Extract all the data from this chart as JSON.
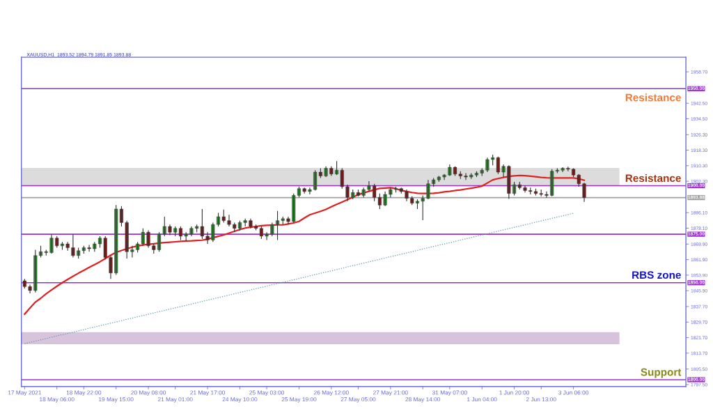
{
  "chart_data": {
    "type": "candlestick",
    "title": "XAUUSD,H1  1893.52 1894.79 1891.85 1893.88",
    "categories": [
      "17 May 2021",
      null,
      null,
      null,
      null,
      null,
      "18 May 06:00",
      null,
      null,
      null,
      null,
      "18 May 22:00",
      null,
      null,
      null,
      null,
      null,
      "19 May 15:00",
      null,
      null,
      null,
      null,
      null,
      "20 May 08:00",
      null,
      null,
      null,
      null,
      "21 May 01:00",
      null,
      null,
      null,
      null,
      null,
      "21 May 17:00",
      null,
      null,
      null,
      null,
      null,
      "24 May 10:00",
      null,
      null,
      null,
      null,
      "25 May 03:00",
      null,
      null,
      null,
      null,
      null,
      "25 May 19:00",
      null,
      null,
      null,
      null,
      null,
      "26 May 12:00",
      null,
      null,
      null,
      null,
      "27 May 05:00",
      null,
      null,
      null,
      null,
      null,
      "27 May 21:00",
      null,
      null,
      null,
      null,
      null,
      "28 May 14:00",
      null,
      null,
      null,
      null,
      "31 May 07:00",
      null,
      null,
      null,
      null,
      null,
      "1 Jun 04:00",
      null,
      null,
      null,
      null,
      null,
      "1 Jun 20:00",
      null,
      null,
      null,
      null,
      "2 Jun 13:00",
      null,
      null,
      null,
      null,
      null,
      "3 Jun 06:00",
      null,
      null
    ],
    "ohlc": [
      [
        1851,
        1852,
        1847,
        1848
      ],
      [
        1848,
        1849,
        1844.5,
        1846
      ],
      [
        1846,
        1867,
        1845,
        1864
      ],
      [
        1864,
        1869,
        1863,
        1866
      ],
      [
        1866,
        1867,
        1864,
        1865.5
      ],
      [
        1865.5,
        1875,
        1865,
        1873
      ],
      [
        1873,
        1874,
        1868,
        1869
      ],
      [
        1869,
        1871,
        1867,
        1870
      ],
      [
        1870,
        1871,
        1866.5,
        1868
      ],
      [
        1868,
        1875,
        1863,
        1864
      ],
      [
        1864,
        1868,
        1862.5,
        1866.5
      ],
      [
        1866.5,
        1869,
        1865,
        1868
      ],
      [
        1868,
        1869.5,
        1866,
        1867.5
      ],
      [
        1867.5,
        1871,
        1866,
        1870
      ],
      [
        1870,
        1874,
        1868,
        1873
      ],
      [
        1873,
        1874,
        1862,
        1863
      ],
      [
        1863,
        1864,
        1852,
        1855
      ],
      [
        1855,
        1890,
        1854,
        1888
      ],
      [
        1888,
        1889.5,
        1879,
        1881
      ],
      [
        1881,
        1882,
        1862.5,
        1866
      ],
      [
        1866,
        1869,
        1863,
        1867
      ],
      [
        1867,
        1871,
        1865.5,
        1870
      ],
      [
        1870,
        1878,
        1869,
        1876
      ],
      [
        1876,
        1877,
        1868,
        1869
      ],
      [
        1869,
        1870,
        1865,
        1867
      ],
      [
        1867,
        1876,
        1866,
        1875
      ],
      [
        1875,
        1884,
        1874,
        1879
      ],
      [
        1879,
        1880,
        1874.5,
        1876
      ],
      [
        1876,
        1879,
        1874,
        1878
      ],
      [
        1878,
        1879,
        1872,
        1874
      ],
      [
        1874,
        1876,
        1871.5,
        1875
      ],
      [
        1875,
        1879,
        1874,
        1878
      ],
      [
        1878,
        1880,
        1876,
        1879
      ],
      [
        1879,
        1888,
        1872.5,
        1874
      ],
      [
        1874,
        1876,
        1870,
        1872
      ],
      [
        1872,
        1881,
        1871,
        1880
      ],
      [
        1880,
        1886,
        1879,
        1884
      ],
      [
        1884,
        1887.7,
        1881,
        1882
      ],
      [
        1882,
        1885,
        1879,
        1880
      ],
      [
        1880,
        1881,
        1876,
        1878
      ],
      [
        1878,
        1882,
        1877,
        1881
      ],
      [
        1881,
        1883,
        1879,
        1882
      ],
      [
        1882,
        1883,
        1878,
        1879
      ],
      [
        1879,
        1880,
        1877,
        1878
      ],
      [
        1878,
        1879,
        1872.5,
        1874
      ],
      [
        1874,
        1876,
        1872,
        1875
      ],
      [
        1875,
        1881,
        1874,
        1880
      ],
      [
        1880,
        1887,
        1872,
        1882
      ],
      [
        1882,
        1884,
        1880,
        1883
      ],
      [
        1883,
        1884,
        1880,
        1881.5
      ],
      [
        1881.5,
        1896,
        1881,
        1895
      ],
      [
        1895,
        1899.5,
        1894,
        1898.5
      ],
      [
        1898.5,
        1899,
        1896,
        1897
      ],
      [
        1897,
        1899,
        1895.5,
        1898
      ],
      [
        1898,
        1908,
        1897.5,
        1907
      ],
      [
        1907,
        1909,
        1904,
        1905
      ],
      [
        1905,
        1910,
        1904.5,
        1909
      ],
      [
        1909,
        1910,
        1905,
        1906
      ],
      [
        1906,
        1912.7,
        1905.5,
        1908
      ],
      [
        1908,
        1909,
        1898.5,
        1899.5
      ],
      [
        1899.5,
        1900.5,
        1892,
        1894
      ],
      [
        1894,
        1898,
        1893,
        1896.5
      ],
      [
        1896.5,
        1898,
        1894.5,
        1895
      ],
      [
        1895,
        1899,
        1894,
        1898
      ],
      [
        1898,
        1902.3,
        1897,
        1900
      ],
      [
        1900,
        1901,
        1892,
        1894
      ],
      [
        1894,
        1896,
        1888,
        1890
      ],
      [
        1890,
        1897,
        1889.5,
        1895.5
      ],
      [
        1895.5,
        1899,
        1894,
        1898
      ],
      [
        1898,
        1899.5,
        1896.5,
        1898.5
      ],
      [
        1898.5,
        1899,
        1896,
        1897
      ],
      [
        1897,
        1898,
        1892,
        1893.5
      ],
      [
        1893.5,
        1894.5,
        1890,
        1891
      ],
      [
        1891,
        1893,
        1888,
        1892
      ],
      [
        1892,
        1895,
        1882.2,
        1893.5
      ],
      [
        1893.5,
        1903,
        1893,
        1901
      ],
      [
        1901,
        1904,
        1899.5,
        1903
      ],
      [
        1903,
        1905,
        1902,
        1904.5
      ],
      [
        1904.5,
        1906,
        1903,
        1905.5
      ],
      [
        1905.5,
        1911,
        1905,
        1909.5
      ],
      [
        1909.5,
        1910,
        1905,
        1906
      ],
      [
        1906,
        1907.5,
        1903.5,
        1905
      ],
      [
        1905,
        1906.5,
        1903,
        1904.5
      ],
      [
        1904.5,
        1906.5,
        1903.5,
        1905.5
      ],
      [
        1905.5,
        1907.5,
        1904.5,
        1906.5
      ],
      [
        1906.5,
        1909,
        1905,
        1908
      ],
      [
        1908,
        1914.5,
        1907,
        1913.5
      ],
      [
        1913.5,
        1916,
        1910.5,
        1914.5
      ],
      [
        1914.5,
        1915,
        1906,
        1907
      ],
      [
        1907,
        1911,
        1904.5,
        1910
      ],
      [
        1910,
        1910.5,
        1893.2,
        1896
      ],
      [
        1896,
        1902,
        1895,
        1900.5
      ],
      [
        1900.5,
        1902,
        1898,
        1899
      ],
      [
        1899,
        1900,
        1896.5,
        1897.5
      ],
      [
        1897.5,
        1899,
        1895.5,
        1897
      ],
      [
        1897,
        1898.5,
        1895,
        1896
      ],
      [
        1896,
        1898,
        1894.5,
        1895.5
      ],
      [
        1895.5,
        1897,
        1893.8,
        1895
      ],
      [
        1895,
        1908.5,
        1894.5,
        1907.5
      ],
      [
        1907.5,
        1909,
        1906.5,
        1908
      ],
      [
        1908,
        1909.5,
        1907,
        1909
      ],
      [
        1909,
        1909.8,
        1907.5,
        1908.5
      ],
      [
        1908.5,
        1909,
        1904.5,
        1905.5
      ],
      [
        1905.5,
        1906,
        1899.5,
        1901
      ],
      [
        1901,
        1901.5,
        1891.7,
        1893.88
      ]
    ],
    "series": [
      {
        "type": "line",
        "color": "#e02020",
        "line_style": "solid",
        "values": [
          1833.8,
          1837,
          1840,
          1842,
          1844.3,
          1846.3,
          1848.2,
          1850,
          1851.7,
          1853.3,
          1854.9,
          1856.4,
          1857.9,
          1859.3,
          1860.8,
          1862.5,
          1864.2,
          1865.6,
          1866.6,
          1867.5,
          1868.3,
          1869,
          1869.4,
          1869.8,
          1870.1,
          1870.4,
          1870.7,
          1870.9,
          1871.1,
          1871.3,
          1871.5,
          1871.6,
          1871.8,
          1871.9,
          1872.5,
          1873.2,
          1873.9,
          1874.6,
          1875.6,
          1876.5,
          1877.4,
          1878.2,
          1878.6,
          1879,
          1879.4,
          1879.6,
          1879.7,
          1879.8,
          1879.8,
          1880.3,
          1880.8,
          1881.6,
          1883.4,
          1885,
          1885.9,
          1886.8,
          1887.8,
          1889.1,
          1890.4,
          1891.6,
          1892.8,
          1894.1,
          1895.4,
          1896.3,
          1897.1,
          1897.9,
          1898.6,
          1898.8,
          1899,
          1898.5,
          1897.6,
          1897,
          1896.5,
          1896.1,
          1896,
          1896,
          1896.1,
          1896.4,
          1896.8,
          1897.1,
          1897.5,
          1897.8,
          1898.3,
          1898.7,
          1899.2,
          1899.8,
          1901.4,
          1903,
          1903.7,
          1904.3,
          1904.8,
          1905.1,
          1905.3,
          1905.2,
          1904.9,
          1904.6,
          1904.3,
          1904.1,
          1904,
          1904,
          1904,
          1904,
          1904,
          1903.6,
          1902.8
        ]
      },
      {
        "type": "line",
        "color": "#5a9aa8",
        "line_style": "dotted",
        "x": [
          "17 May 2021",
          "3 Jun 06:00"
        ],
        "values": [
          1818.6,
          1885.8
        ]
      }
    ],
    "ylim": [
      1796.5,
      1966.2
    ],
    "yticks": [
      {
        "value": 1958.7,
        "label": "1958.70"
      },
      {
        "value": 1942.5,
        "label": "1942.50"
      },
      {
        "value": 1934.5,
        "label": "1934.50"
      },
      {
        "value": 1926.3,
        "label": "1926.30"
      },
      {
        "value": 1918.3,
        "label": "1918.30"
      },
      {
        "value": 1910.3,
        "label": "1910.30"
      },
      {
        "value": 1902.3,
        "label": "1902.30"
      },
      {
        "value": 1886.1,
        "label": "1886.10"
      },
      {
        "value": 1878.1,
        "label": "1878.10"
      },
      {
        "value": 1869.9,
        "label": "1869.90"
      },
      {
        "value": 1861.9,
        "label": "1861.90"
      },
      {
        "value": 1853.9,
        "label": "1853.90"
      },
      {
        "value": 1845.9,
        "label": "1845.90"
      },
      {
        "value": 1837.7,
        "label": "1837.70"
      },
      {
        "value": 1829.7,
        "label": "1829.70"
      },
      {
        "value": 1821.7,
        "label": "1821.70"
      },
      {
        "value": 1813.7,
        "label": "1813.70"
      },
      {
        "value": 1805.5,
        "label": "1805.50"
      },
      {
        "value": 1797.5,
        "label": "1797.50"
      }
    ],
    "ref_lines": [
      {
        "axis": "y",
        "value": 1950,
        "label": "1950.00",
        "color": "#9b30d0"
      },
      {
        "axis": "y",
        "value": 1900,
        "label": "1900.00",
        "color": "#9b30d0"
      },
      {
        "axis": "y",
        "value": 1893.88,
        "label": "1893.88",
        "color": "#a0a0a0"
      },
      {
        "axis": "y",
        "value": 1875,
        "label": "1875.00",
        "color": "#9b30d0"
      },
      {
        "axis": "y",
        "value": 1850,
        "label": "1850.00",
        "color": "#9b30d0"
      },
      {
        "axis": "y",
        "value": 1800,
        "label": "1800.00",
        "color": "#9b30d0"
      }
    ],
    "bands": [
      {
        "axis": "y",
        "from": 1900,
        "to": 1909.2,
        "color": "#dcdcdc"
      },
      {
        "axis": "y",
        "from": 1818.3,
        "to": 1824.5,
        "color": "#d8c3dc"
      }
    ],
    "annotations": [
      "Resistance",
      "Resistance",
      "RBS zone",
      "Support"
    ]
  }
}
